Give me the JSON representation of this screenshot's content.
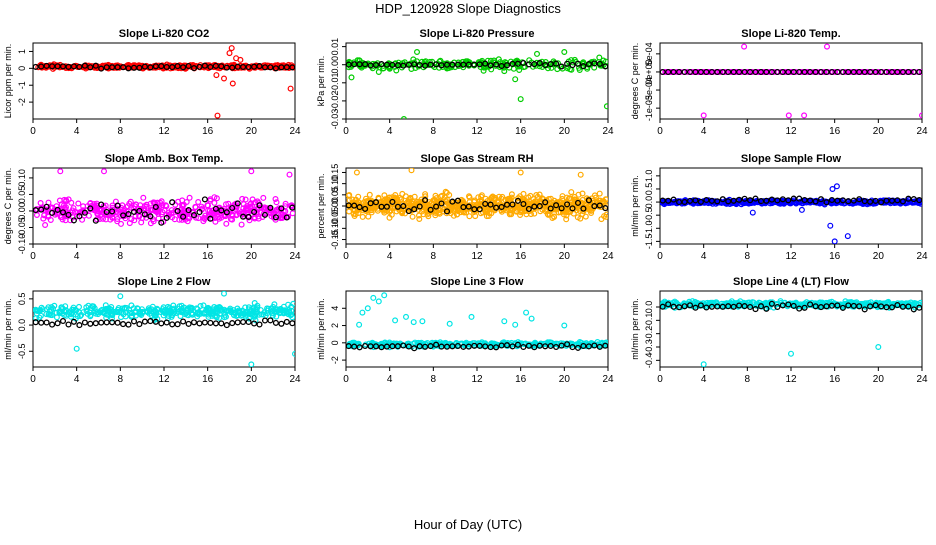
{
  "page": {
    "title": "HDP_120928  Slope Diagnostics",
    "xlabel": "Hour of Day (UTC)"
  },
  "chart_data": [
    {
      "type": "scatter",
      "title": "Slope Li-820 CO2",
      "ylabel": "Licor ppm per min.",
      "xlim": [
        0,
        24
      ],
      "ylim": [
        -3.0,
        1.5
      ],
      "xticks": [
        0,
        4,
        8,
        12,
        16,
        20,
        24
      ],
      "yticks": [
        -2,
        -1,
        0,
        1
      ],
      "yticklabels": [
        "-2",
        "-1",
        "0",
        "1"
      ],
      "color": "#ff0000",
      "spread": 0.15,
      "center": 0.1,
      "noise_n": 380,
      "noise_seed": 11,
      "outliers": [
        [
          18.2,
          1.2
        ],
        [
          18.0,
          0.9
        ],
        [
          18.6,
          0.6
        ],
        [
          19.0,
          0.5
        ],
        [
          17.5,
          -0.6
        ],
        [
          16.8,
          -0.4
        ],
        [
          16.9,
          -2.8
        ],
        [
          23.6,
          -1.2
        ],
        [
          18.3,
          -0.9
        ]
      ],
      "black_median": 0.08,
      "black_noise": 0.1
    },
    {
      "type": "scatter",
      "title": "Slope Li-820 Pressure",
      "ylabel": "kPa per min.",
      "xlim": [
        0,
        24
      ],
      "ylim": [
        -0.03,
        0.012
      ],
      "xticks": [
        0,
        4,
        8,
        12,
        16,
        20,
        24
      ],
      "yticks": [
        -0.03,
        -0.02,
        -0.01,
        0,
        0.01
      ],
      "yticklabels": [
        "-0.03",
        "-0.02",
        "-0.01",
        "0.00",
        "0.01"
      ],
      "color": "#00cc00",
      "spread": 0.004,
      "center": 0.0,
      "noise_n": 240,
      "noise_seed": 22,
      "outliers": [
        [
          0.5,
          -0.007
        ],
        [
          3.0,
          -0.004
        ],
        [
          6.5,
          0.007
        ],
        [
          15.5,
          -0.008
        ],
        [
          16.0,
          -0.019
        ],
        [
          17.5,
          0.006
        ],
        [
          20.0,
          0.007
        ],
        [
          23.2,
          0.004
        ],
        [
          23.9,
          -0.023
        ],
        [
          5.3,
          -0.03
        ],
        [
          14.0,
          0.003
        ]
      ],
      "black_median": 0.0,
      "black_noise": 0.0012
    },
    {
      "type": "scatter",
      "title": "Slope Li-820 Temp.",
      "ylabel": "degrees C per min.",
      "xlim": [
        0,
        24
      ],
      "ylim": [
        -0.0013,
        0.0008
      ],
      "xticks": [
        0,
        4,
        8,
        12,
        16,
        20,
        24
      ],
      "yticks": [
        -0.001,
        -0.0005,
        0,
        0.0005
      ],
      "yticklabels": [
        "-1e-03",
        "-5e-04",
        "0e+00",
        "5e-04"
      ],
      "color": "#ff00ff",
      "spread": 0.0,
      "center": 0.0,
      "noise_n": 120,
      "noise_seed": 33,
      "outliers": [
        [
          7.7,
          0.0007
        ],
        [
          15.3,
          0.0007
        ],
        [
          4.0,
          -0.0012
        ],
        [
          11.8,
          -0.0012
        ],
        [
          13.2,
          -0.0012
        ],
        [
          24.0,
          -0.0012
        ]
      ],
      "black_median": 0.0,
      "black_noise": 0.0
    },
    {
      "type": "scatter",
      "title": "Slope Amb. Box Temp.",
      "ylabel": "degrees C per min.",
      "xlim": [
        0,
        24
      ],
      "ylim": [
        -0.1,
        0.13
      ],
      "xticks": [
        0,
        4,
        8,
        12,
        16,
        20,
        24
      ],
      "yticks": [
        -0.1,
        -0.05,
        0,
        0.05,
        0.1
      ],
      "yticklabels": [
        "-0.10",
        "-0.05",
        "0.00",
        "0.05",
        "0.10"
      ],
      "color": "#ff00ff",
      "spread": 0.05,
      "center": 0.0,
      "noise_n": 420,
      "noise_seed": 44,
      "outliers": [
        [
          2.5,
          0.12
        ],
        [
          6.5,
          0.12
        ],
        [
          20.0,
          0.12
        ],
        [
          23.5,
          0.11
        ]
      ],
      "black_median": 0.0,
      "black_noise": 0.04
    },
    {
      "type": "scatter",
      "title": "Slope Gas Stream RH",
      "ylabel": "percent per min.",
      "xlim": [
        0,
        24
      ],
      "ylim": [
        -0.17,
        0.17
      ],
      "xticks": [
        0,
        4,
        8,
        12,
        16,
        20,
        24
      ],
      "yticks": [
        -0.15,
        -0.1,
        -0.05,
        0,
        0.05,
        0.1,
        0.15
      ],
      "yticklabels": [
        "-0.15",
        "-0.10",
        "-0.05",
        "0.00",
        "0.05",
        "0.10",
        "0.15"
      ],
      "color": "#ffaa00",
      "spread": 0.07,
      "center": 0.0,
      "noise_n": 700,
      "noise_seed": 55,
      "outliers": [
        [
          1.0,
          0.15
        ],
        [
          6.0,
          0.16
        ],
        [
          16.0,
          0.15
        ],
        [
          21.5,
          0.14
        ]
      ],
      "black_median": 0.0,
      "black_noise": 0.04
    },
    {
      "type": "scatter",
      "title": "Slope Sample Flow",
      "ylabel": "ml/min per min.",
      "xlim": [
        0,
        24
      ],
      "ylim": [
        -1.6,
        1.3
      ],
      "xticks": [
        0,
        4,
        8,
        12,
        16,
        20,
        24
      ],
      "yticks": [
        -1.5,
        -1.0,
        -0.5,
        0,
        0.5,
        1.0
      ],
      "yticklabels": [
        "-1.5",
        "-1.0",
        "-0.5",
        "0.0",
        "0.5",
        "1.0"
      ],
      "color": "#0000ff",
      "spread": 0.1,
      "center": 0.0,
      "noise_n": 420,
      "noise_seed": 66,
      "outliers": [
        [
          15.8,
          0.5
        ],
        [
          16.2,
          0.6
        ],
        [
          15.6,
          -0.9
        ],
        [
          16.0,
          -1.5
        ],
        [
          17.2,
          -1.3
        ],
        [
          13.0,
          -0.3
        ],
        [
          8.5,
          -0.4
        ]
      ],
      "black_median": 0.05,
      "black_noise": 0.1
    },
    {
      "type": "scatter",
      "title": "Slope Line 2 Flow",
      "ylabel": "ml/min per min.",
      "xlim": [
        0,
        24
      ],
      "ylim": [
        -0.8,
        0.65
      ],
      "xticks": [
        0,
        4,
        8,
        12,
        16,
        20,
        24
      ],
      "yticks": [
        -0.5,
        0,
        0.5
      ],
      "yticklabels": [
        "-0.5",
        "0.0",
        "0.5"
      ],
      "color": "#00e5e5",
      "spread": 0.18,
      "center": 0.25,
      "noise_n": 380,
      "noise_seed": 77,
      "outliers": [
        [
          4.0,
          -0.45
        ],
        [
          20.0,
          -0.75
        ],
        [
          24.0,
          -0.55
        ],
        [
          17.5,
          0.6
        ],
        [
          8.0,
          0.55
        ]
      ],
      "black_median": 0.05,
      "black_noise": 0.06
    },
    {
      "type": "scatter",
      "title": "Slope Line 3 Flow",
      "ylabel": "ml/min per min.",
      "xlim": [
        0,
        24
      ],
      "ylim": [
        -2.8,
        6.0
      ],
      "xticks": [
        0,
        4,
        8,
        12,
        16,
        20,
        24
      ],
      "yticks": [
        -2,
        0,
        2,
        4
      ],
      "yticklabels": [
        "-2",
        "0",
        "2",
        "4"
      ],
      "color": "#00e5e5",
      "spread": 0.35,
      "center": -0.2,
      "noise_n": 320,
      "noise_seed": 88,
      "outliers": [
        [
          2.5,
          5.2
        ],
        [
          3.0,
          4.8
        ],
        [
          3.5,
          5.5
        ],
        [
          1.5,
          3.5
        ],
        [
          2.0,
          4.0
        ],
        [
          5.5,
          3.0
        ],
        [
          7.0,
          2.5
        ],
        [
          11.5,
          3.0
        ],
        [
          14.5,
          2.5
        ],
        [
          16.5,
          3.5
        ],
        [
          17.0,
          2.8
        ],
        [
          20.0,
          2.0
        ],
        [
          4.5,
          2.6
        ],
        [
          9.5,
          2.2
        ],
        [
          1.2,
          2.1
        ],
        [
          6.2,
          2.4
        ],
        [
          15.5,
          2.1
        ]
      ],
      "black_median": -0.4,
      "black_noise": 0.25
    },
    {
      "type": "scatter",
      "title": "Slope Line 4 (LT) Flow",
      "ylabel": "ml/min per min.",
      "xlim": [
        0,
        24
      ],
      "ylim": [
        -0.45,
        0.12
      ],
      "xticks": [
        0,
        4,
        8,
        12,
        16,
        20,
        24
      ],
      "yticks": [
        -0.4,
        -0.3,
        -0.2,
        -0.1,
        0
      ],
      "yticklabels": [
        "-0.4",
        "-0.3",
        "-0.2",
        "-0.1",
        "0.0"
      ],
      "color": "#00e5e5",
      "spread": 0.03,
      "center": 0.02,
      "noise_n": 380,
      "noise_seed": 99,
      "outliers": [
        [
          4.0,
          -0.43
        ],
        [
          12.0,
          -0.35
        ],
        [
          20.0,
          -0.3
        ]
      ],
      "black_median": 0.0,
      "black_noise": 0.025
    }
  ]
}
